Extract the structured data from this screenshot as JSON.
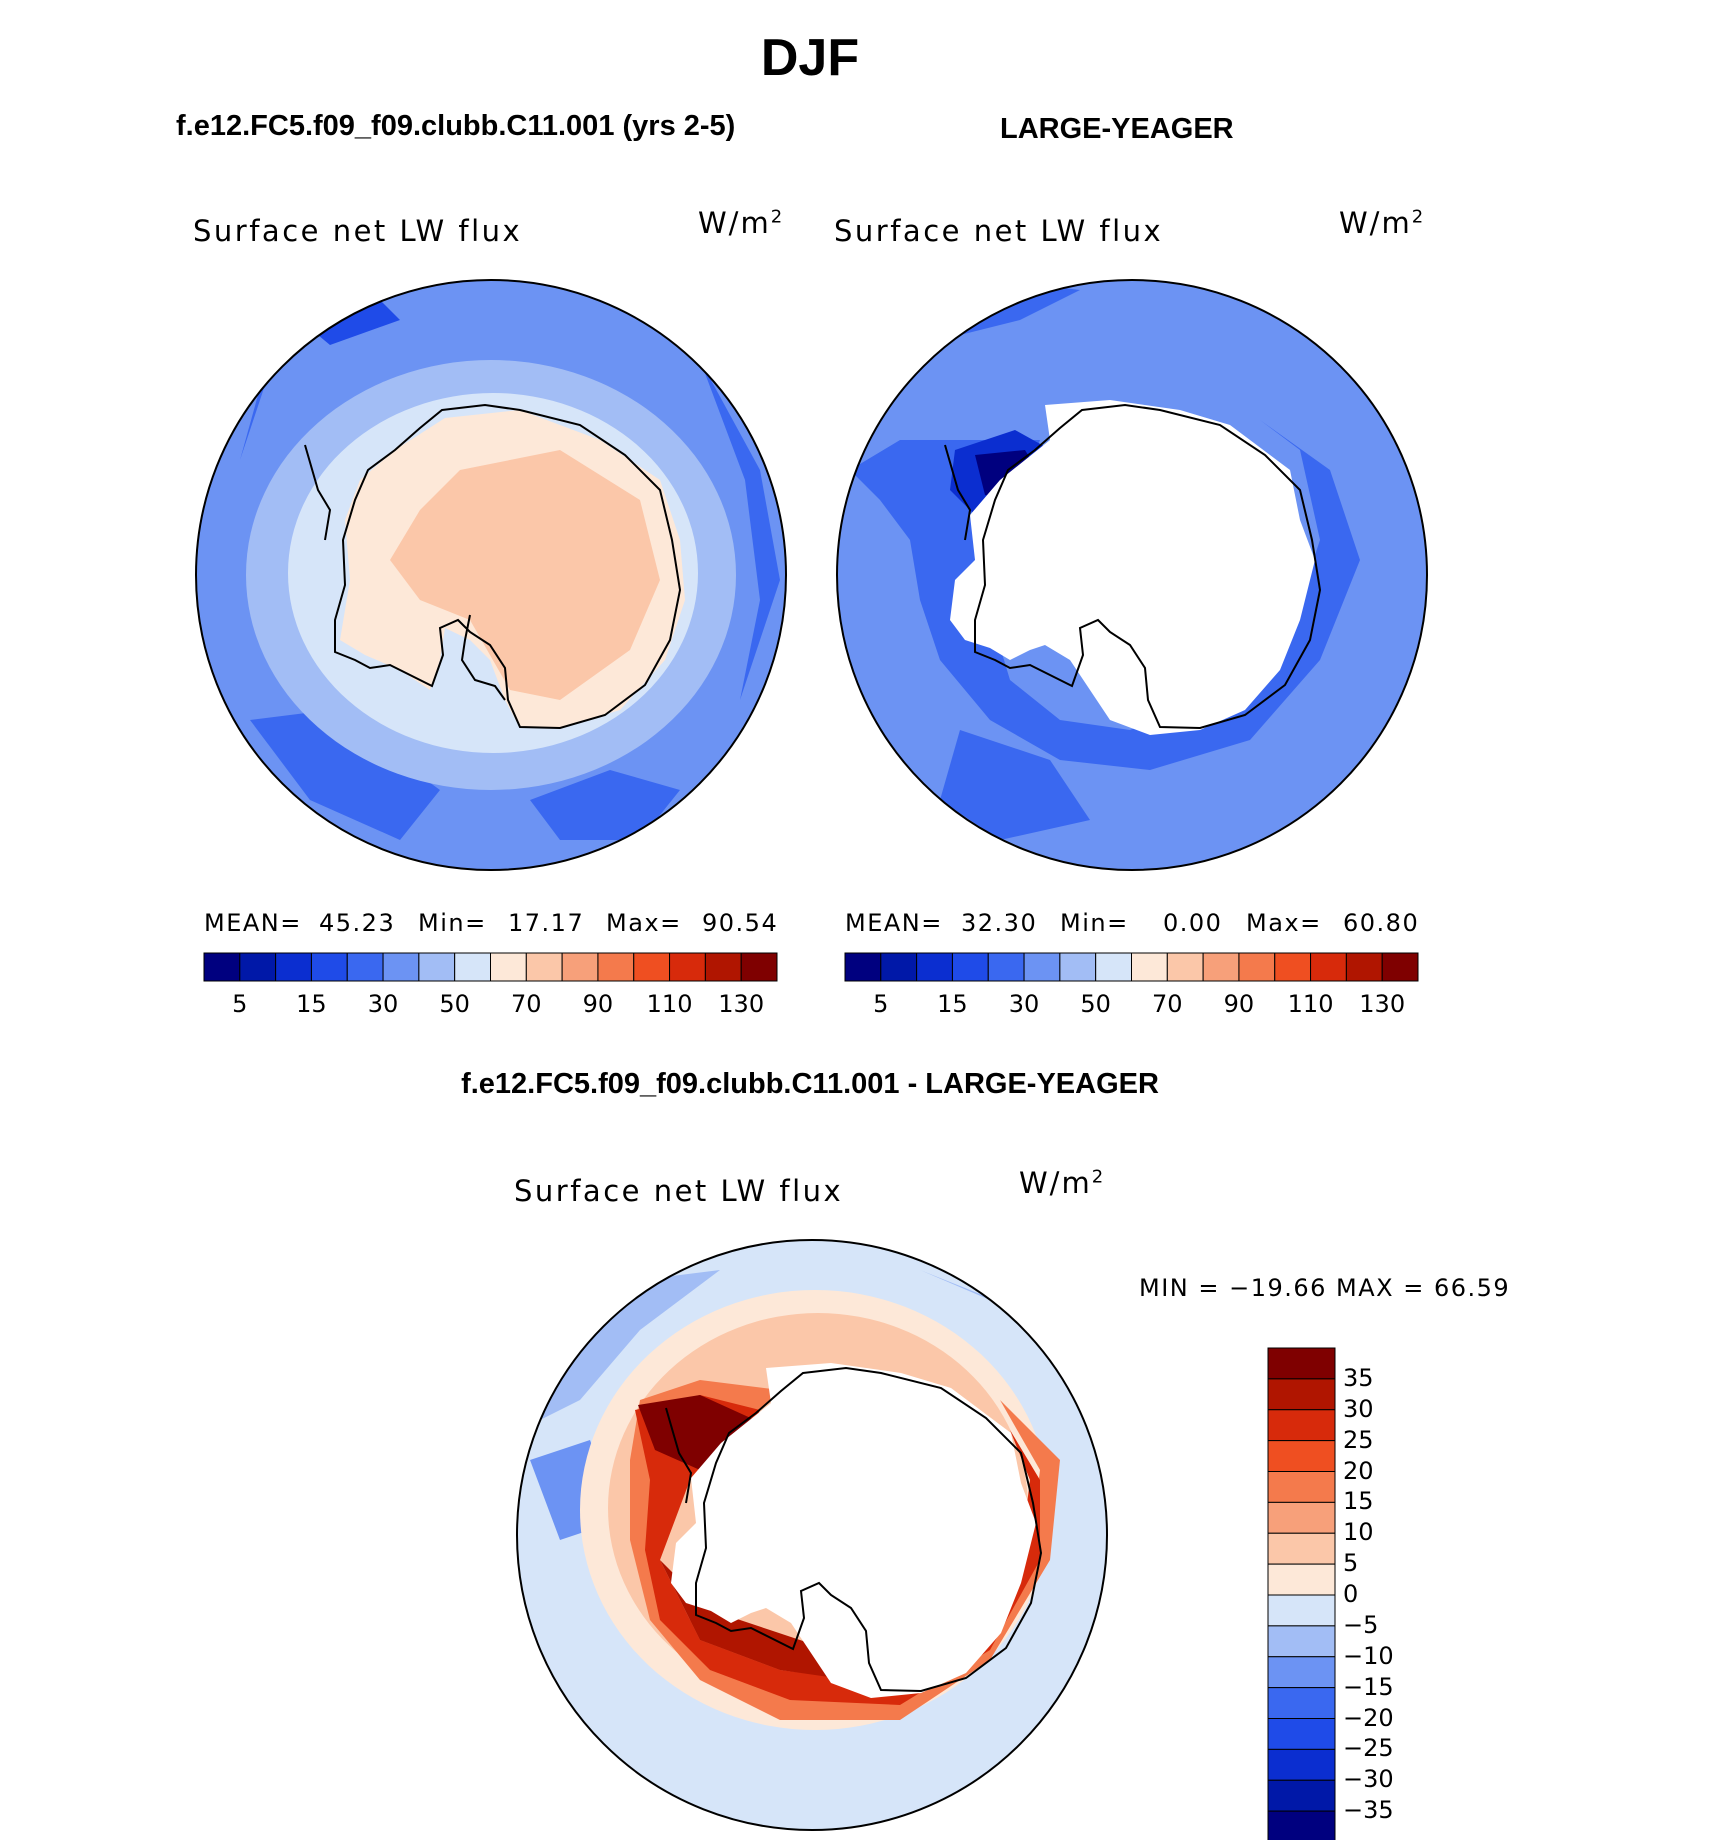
{
  "title": "DJF",
  "subtitles": {
    "left": "f.e12.FC5.f09_f09.clubb.C11.001 (yrs 2-5)",
    "right": "LARGE-YEAGER",
    "diff": "f.e12.FC5.f09_f09.clubb.C11.001 - LARGE-YEAGER"
  },
  "chart_data": [
    {
      "type": "heatmap",
      "panel": "model",
      "variable": "Surface net LW flux",
      "units": "W/m",
      "units_exp": "2",
      "stats": {
        "mean_label": "MEAN=",
        "mean": "45.23",
        "min_label": "Min=",
        "min": "17.17",
        "max_label": "Max=",
        "max": "90.54"
      },
      "levels": [
        0,
        5,
        10,
        15,
        20,
        30,
        40,
        50,
        60,
        70,
        80,
        90,
        100,
        110,
        120,
        130
      ],
      "colorbar_labels": [
        "5",
        "15",
        "30",
        "50",
        "70",
        "90",
        "110",
        "130"
      ],
      "colors": [
        "#00007f",
        "#0018a8",
        "#0b2ed0",
        "#1f4be8",
        "#3a68f0",
        "#6c93f3",
        "#a2bdf5",
        "#d6e5f9",
        "#fde8d8",
        "#fbc7a9",
        "#f7a07a",
        "#f47a4c",
        "#ef4f21",
        "#d72a0b",
        "#b01500",
        "#7f0000"
      ]
    },
    {
      "type": "heatmap",
      "panel": "obs",
      "variable": "Surface net LW flux",
      "units": "W/m",
      "units_exp": "2",
      "stats": {
        "mean_label": "MEAN=",
        "mean": "32.30",
        "min_label": "Min=",
        "min": "0.00",
        "max_label": "Max=",
        "max": "60.80"
      },
      "levels": [
        0,
        5,
        10,
        15,
        20,
        30,
        40,
        50,
        60,
        70,
        80,
        90,
        100,
        110,
        120,
        130
      ],
      "colorbar_labels": [
        "5",
        "15",
        "30",
        "50",
        "70",
        "90",
        "110",
        "130"
      ],
      "colors": [
        "#00007f",
        "#0018a8",
        "#0b2ed0",
        "#1f4be8",
        "#3a68f0",
        "#6c93f3",
        "#a2bdf5",
        "#d6e5f9",
        "#fde8d8",
        "#fbc7a9",
        "#f7a07a",
        "#f47a4c",
        "#ef4f21",
        "#d72a0b",
        "#b01500",
        "#7f0000"
      ]
    },
    {
      "type": "heatmap",
      "panel": "difference",
      "variable": "Surface net LW flux",
      "units": "W/m",
      "units_exp": "2",
      "stats": {
        "text": "MIN = −19.66 MAX =   66.59",
        "min": -19.66,
        "max": 66.59
      },
      "levels": [
        -35,
        -30,
        -25,
        -20,
        -15,
        -10,
        -5,
        0,
        5,
        10,
        15,
        20,
        25,
        30,
        35
      ],
      "colorbar_labels": [
        "35",
        "30",
        "25",
        "20",
        "15",
        "10",
        "5",
        "0",
        "−5",
        "−10",
        "−15",
        "−20",
        "−25",
        "−30",
        "−35"
      ],
      "colors": [
        "#7f0000",
        "#b01500",
        "#d72a0b",
        "#ef4f21",
        "#f47a4c",
        "#f7a07a",
        "#fbc7a9",
        "#fde8d8",
        "#d6e5f9",
        "#a2bdf5",
        "#6c93f3",
        "#3a68f0",
        "#1f4be8",
        "#0b2ed0",
        "#0018a8",
        "#00007f"
      ]
    }
  ]
}
